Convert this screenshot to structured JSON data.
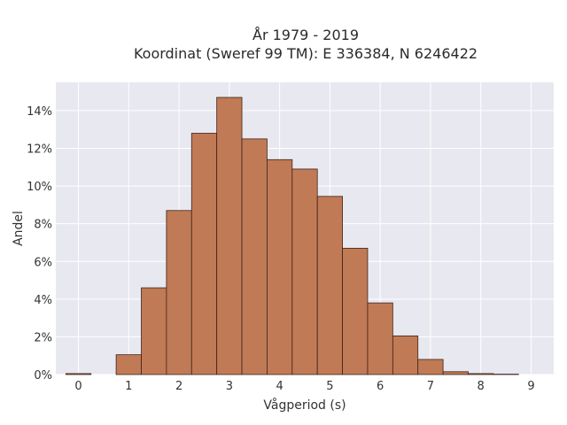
{
  "chart_data": {
    "type": "bar",
    "title_line1": "År 1979 - 2019",
    "title_line2": "Koordinat (Sweref 99 TM): E 336384, N 6246422",
    "xlabel": "Vågperiod (s)",
    "ylabel": "Andel",
    "bin_width": 0.5,
    "bin_starts": [
      -0.25,
      0.25,
      0.75,
      1.25,
      1.75,
      2.25,
      2.75,
      3.25,
      3.75,
      4.25,
      4.75,
      5.25,
      5.75,
      6.25,
      6.75,
      7.25,
      7.75,
      8.25,
      8.75
    ],
    "values": [
      0.05,
      0.0,
      1.05,
      4.6,
      8.7,
      12.8,
      14.7,
      12.5,
      11.4,
      10.9,
      9.45,
      6.7,
      3.8,
      2.05,
      0.8,
      0.15,
      0.05,
      0.02,
      0.0
    ],
    "xlim": [
      -0.45,
      9.45
    ],
    "ylim": [
      0,
      15.5
    ],
    "x_ticks": [
      0,
      1,
      2,
      3,
      4,
      5,
      6,
      7,
      8,
      9
    ],
    "y_ticks": [
      0,
      2,
      4,
      6,
      8,
      10,
      12,
      14
    ],
    "y_tick_labels": [
      "0%",
      "2%",
      "4%",
      "6%",
      "8%",
      "10%",
      "12%",
      "14%"
    ],
    "grid": true,
    "colors": {
      "bar_fill": "#c17a56",
      "bar_edge": "#3d2318",
      "plot_bg": "#e8e8f0",
      "grid": "#ffffff"
    }
  }
}
